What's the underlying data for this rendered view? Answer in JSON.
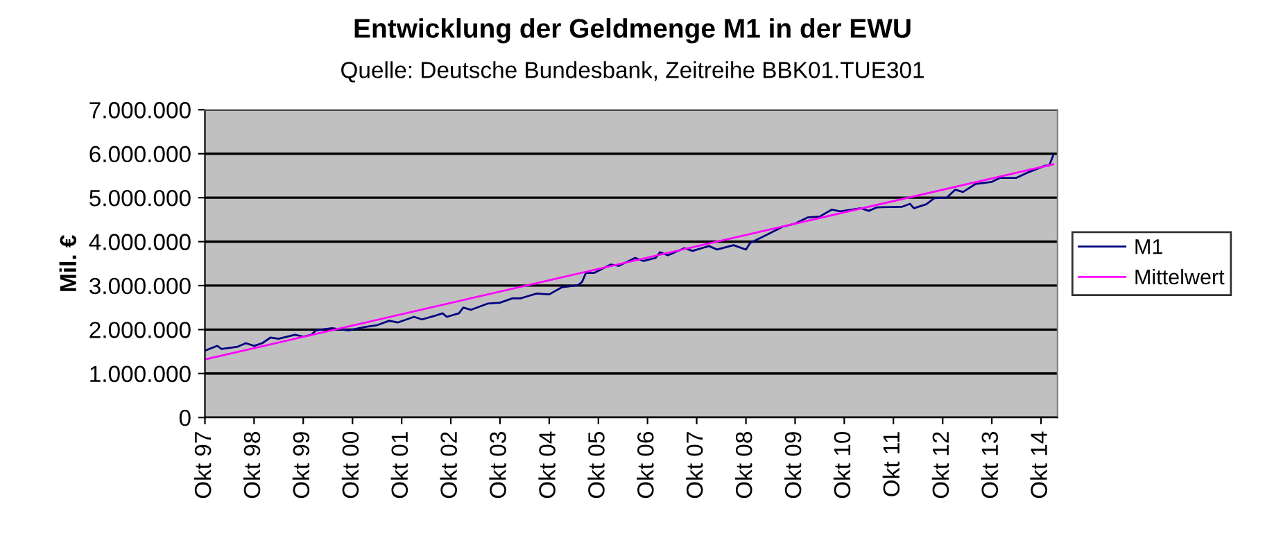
{
  "chart_data": {
    "type": "line",
    "title": "Entwicklung der Geldmenge M1 in der EWU",
    "subtitle": "Quelle: Deutsche Bundesbank, Zeitreihe BBK01.TUE301",
    "ylabel": "Mil. €",
    "series": [
      {
        "name": "M1",
        "color": "#000080",
        "x": [
          "1997-10",
          "1998-01",
          "1998-02",
          "1998-06",
          "1998-08",
          "1998-10",
          "1998-12",
          "1999-02",
          "1999-04",
          "1999-08",
          "1999-10",
          "1999-12",
          "2000-01",
          "2000-05",
          "2000-09",
          "2001-01",
          "2001-04",
          "2001-07",
          "2001-09",
          "2002-01",
          "2002-03",
          "2002-06",
          "2002-08",
          "2002-09",
          "2002-12",
          "2003-01",
          "2003-03",
          "2003-07",
          "2003-10",
          "2004-01",
          "2004-03",
          "2004-07",
          "2004-10",
          "2005-01",
          "2005-05",
          "2005-06",
          "2005-07",
          "2005-09",
          "2006-01",
          "2006-03",
          "2006-07",
          "2006-09",
          "2006-12",
          "2007-01",
          "2007-03",
          "2007-07",
          "2007-09",
          "2008-01",
          "2008-03",
          "2008-07",
          "2008-10",
          "2008-11",
          "2009-03",
          "2009-07",
          "2009-10",
          "2010-01",
          "2010-04",
          "2010-07",
          "2010-09",
          "2011-02",
          "2011-04",
          "2011-06",
          "2011-12",
          "2012-02",
          "2012-03",
          "2012-06",
          "2012-08",
          "2012-11",
          "2013-01",
          "2013-03",
          "2013-06",
          "2013-10",
          "2013-12",
          "2014-04",
          "2014-07",
          "2014-11",
          "2014-12",
          "2015-01"
        ],
        "values": [
          1520000,
          1630000,
          1560000,
          1610000,
          1690000,
          1630000,
          1690000,
          1820000,
          1790000,
          1880000,
          1840000,
          1880000,
          1980000,
          2030000,
          1980000,
          2060000,
          2100000,
          2200000,
          2160000,
          2290000,
          2230000,
          2310000,
          2370000,
          2290000,
          2370000,
          2500000,
          2450000,
          2590000,
          2610000,
          2710000,
          2710000,
          2820000,
          2800000,
          2960000,
          3010000,
          3080000,
          3290000,
          3290000,
          3480000,
          3450000,
          3630000,
          3560000,
          3630000,
          3760000,
          3690000,
          3850000,
          3790000,
          3900000,
          3820000,
          3920000,
          3820000,
          3970000,
          4150000,
          4340000,
          4410000,
          4550000,
          4570000,
          4730000,
          4690000,
          4760000,
          4700000,
          4780000,
          4790000,
          4860000,
          4760000,
          4850000,
          4990000,
          5000000,
          5180000,
          5130000,
          5310000,
          5360000,
          5450000,
          5450000,
          5580000,
          5730000,
          5730000,
          5970000
        ]
      },
      {
        "name": "Mittelwert",
        "color": "#ff00ff",
        "x": [
          "1997-10",
          "2015-01"
        ],
        "values": [
          1320000,
          5760000
        ]
      }
    ],
    "xlim": [
      "1997-10",
      "2015-02"
    ],
    "xticks": [
      {
        "value": "1997-10",
        "label": "Okt 97"
      },
      {
        "value": "1998-10",
        "label": "Okt 98"
      },
      {
        "value": "1999-10",
        "label": "Okt 99"
      },
      {
        "value": "2000-10",
        "label": "Okt 00"
      },
      {
        "value": "2001-10",
        "label": "Okt 01"
      },
      {
        "value": "2002-10",
        "label": "Okt 02"
      },
      {
        "value": "2003-10",
        "label": "Okt 03"
      },
      {
        "value": "2004-10",
        "label": "Okt 04"
      },
      {
        "value": "2005-10",
        "label": "Okt 05"
      },
      {
        "value": "2006-10",
        "label": "Okt 06"
      },
      {
        "value": "2007-10",
        "label": "Okt 07"
      },
      {
        "value": "2008-10",
        "label": "Okt 08"
      },
      {
        "value": "2009-10",
        "label": "Okt 09"
      },
      {
        "value": "2010-10",
        "label": "Okt 10"
      },
      {
        "value": "2011-10",
        "label": "Okt 11"
      },
      {
        "value": "2012-10",
        "label": "Okt 12"
      },
      {
        "value": "2013-10",
        "label": "Okt 13"
      },
      {
        "value": "2014-10",
        "label": "Okt 14"
      }
    ],
    "ylim": [
      0,
      7000000
    ],
    "yticks": [
      0,
      {
        "value": 1000000,
        "label": "1.000.000"
      },
      {
        "value": 2000000,
        "label": "2.000.000"
      },
      {
        "value": 3000000,
        "label": "3.000.000"
      },
      {
        "value": 4000000,
        "label": "4.000.000"
      },
      {
        "value": 5000000,
        "label": "5.000.000"
      },
      {
        "value": 6000000,
        "label": "6.000.000"
      },
      {
        "value": 7000000,
        "label": "7.000.000"
      }
    ],
    "grid": "y",
    "legend": "right"
  }
}
